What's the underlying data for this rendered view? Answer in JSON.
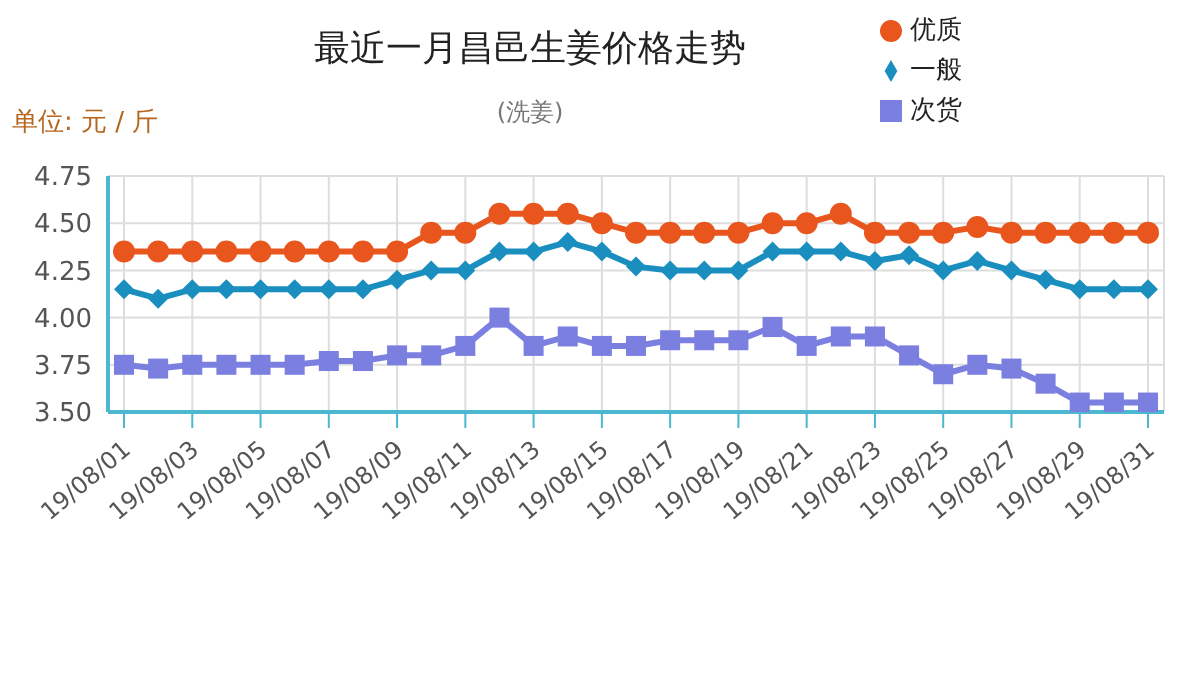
{
  "chart_data": {
    "type": "line",
    "title": "最近一月昌邑生姜价格走势",
    "subtitle": "(洗姜)",
    "ylabel": "单位: 元 / 斤",
    "categories": [
      "19/08/01",
      null,
      "19/08/03",
      null,
      "19/08/05",
      null,
      "19/08/07",
      null,
      "19/08/09",
      null,
      "19/08/11",
      null,
      "19/08/13",
      null,
      "19/08/15",
      null,
      "19/08/17",
      null,
      "19/08/19",
      null,
      "19/08/21",
      null,
      "19/08/23",
      null,
      "19/08/25",
      null,
      "19/08/27",
      null,
      "19/08/29",
      null,
      "19/08/31"
    ],
    "series": [
      {
        "name": "优质",
        "color": "#e8561e",
        "marker": "circle",
        "values": [
          4.35,
          4.35,
          4.35,
          4.35,
          4.35,
          4.35,
          4.35,
          4.35,
          4.35,
          4.45,
          4.45,
          4.55,
          4.55,
          4.55,
          4.5,
          4.45,
          4.45,
          4.45,
          4.45,
          4.5,
          4.5,
          4.55,
          4.45,
          4.45,
          4.45,
          4.48,
          4.45,
          4.45,
          4.45,
          4.45,
          4.45
        ]
      },
      {
        "name": "一般",
        "color": "#1a8fbf",
        "marker": "diamond",
        "values": [
          4.15,
          4.1,
          4.15,
          4.15,
          4.15,
          4.15,
          4.15,
          4.15,
          4.2,
          4.25,
          4.25,
          4.35,
          4.35,
          4.4,
          4.35,
          4.27,
          4.25,
          4.25,
          4.25,
          4.35,
          4.35,
          4.35,
          4.3,
          4.33,
          4.25,
          4.3,
          4.25,
          4.2,
          4.15,
          4.15,
          4.15
        ]
      },
      {
        "name": "次货",
        "color": "#7b7fe0",
        "marker": "square",
        "values": [
          3.75,
          3.73,
          3.75,
          3.75,
          3.75,
          3.75,
          3.77,
          3.77,
          3.8,
          3.8,
          3.85,
          4.0,
          3.85,
          3.9,
          3.85,
          3.85,
          3.88,
          3.88,
          3.88,
          3.95,
          3.85,
          3.9,
          3.9,
          3.8,
          3.7,
          3.75,
          3.73,
          3.65,
          3.55,
          3.55,
          3.55
        ]
      }
    ],
    "ylim": [
      3.5,
      4.75
    ],
    "yticks": [
      {
        "value": 3.5,
        "label": "3.50"
      },
      3.75,
      {
        "value": 4,
        "label": "4.00"
      },
      4.25,
      {
        "value": 4.5,
        "label": "4.50"
      },
      4.75
    ],
    "grid": true,
    "legend": "top right",
    "line_style": "solid"
  }
}
